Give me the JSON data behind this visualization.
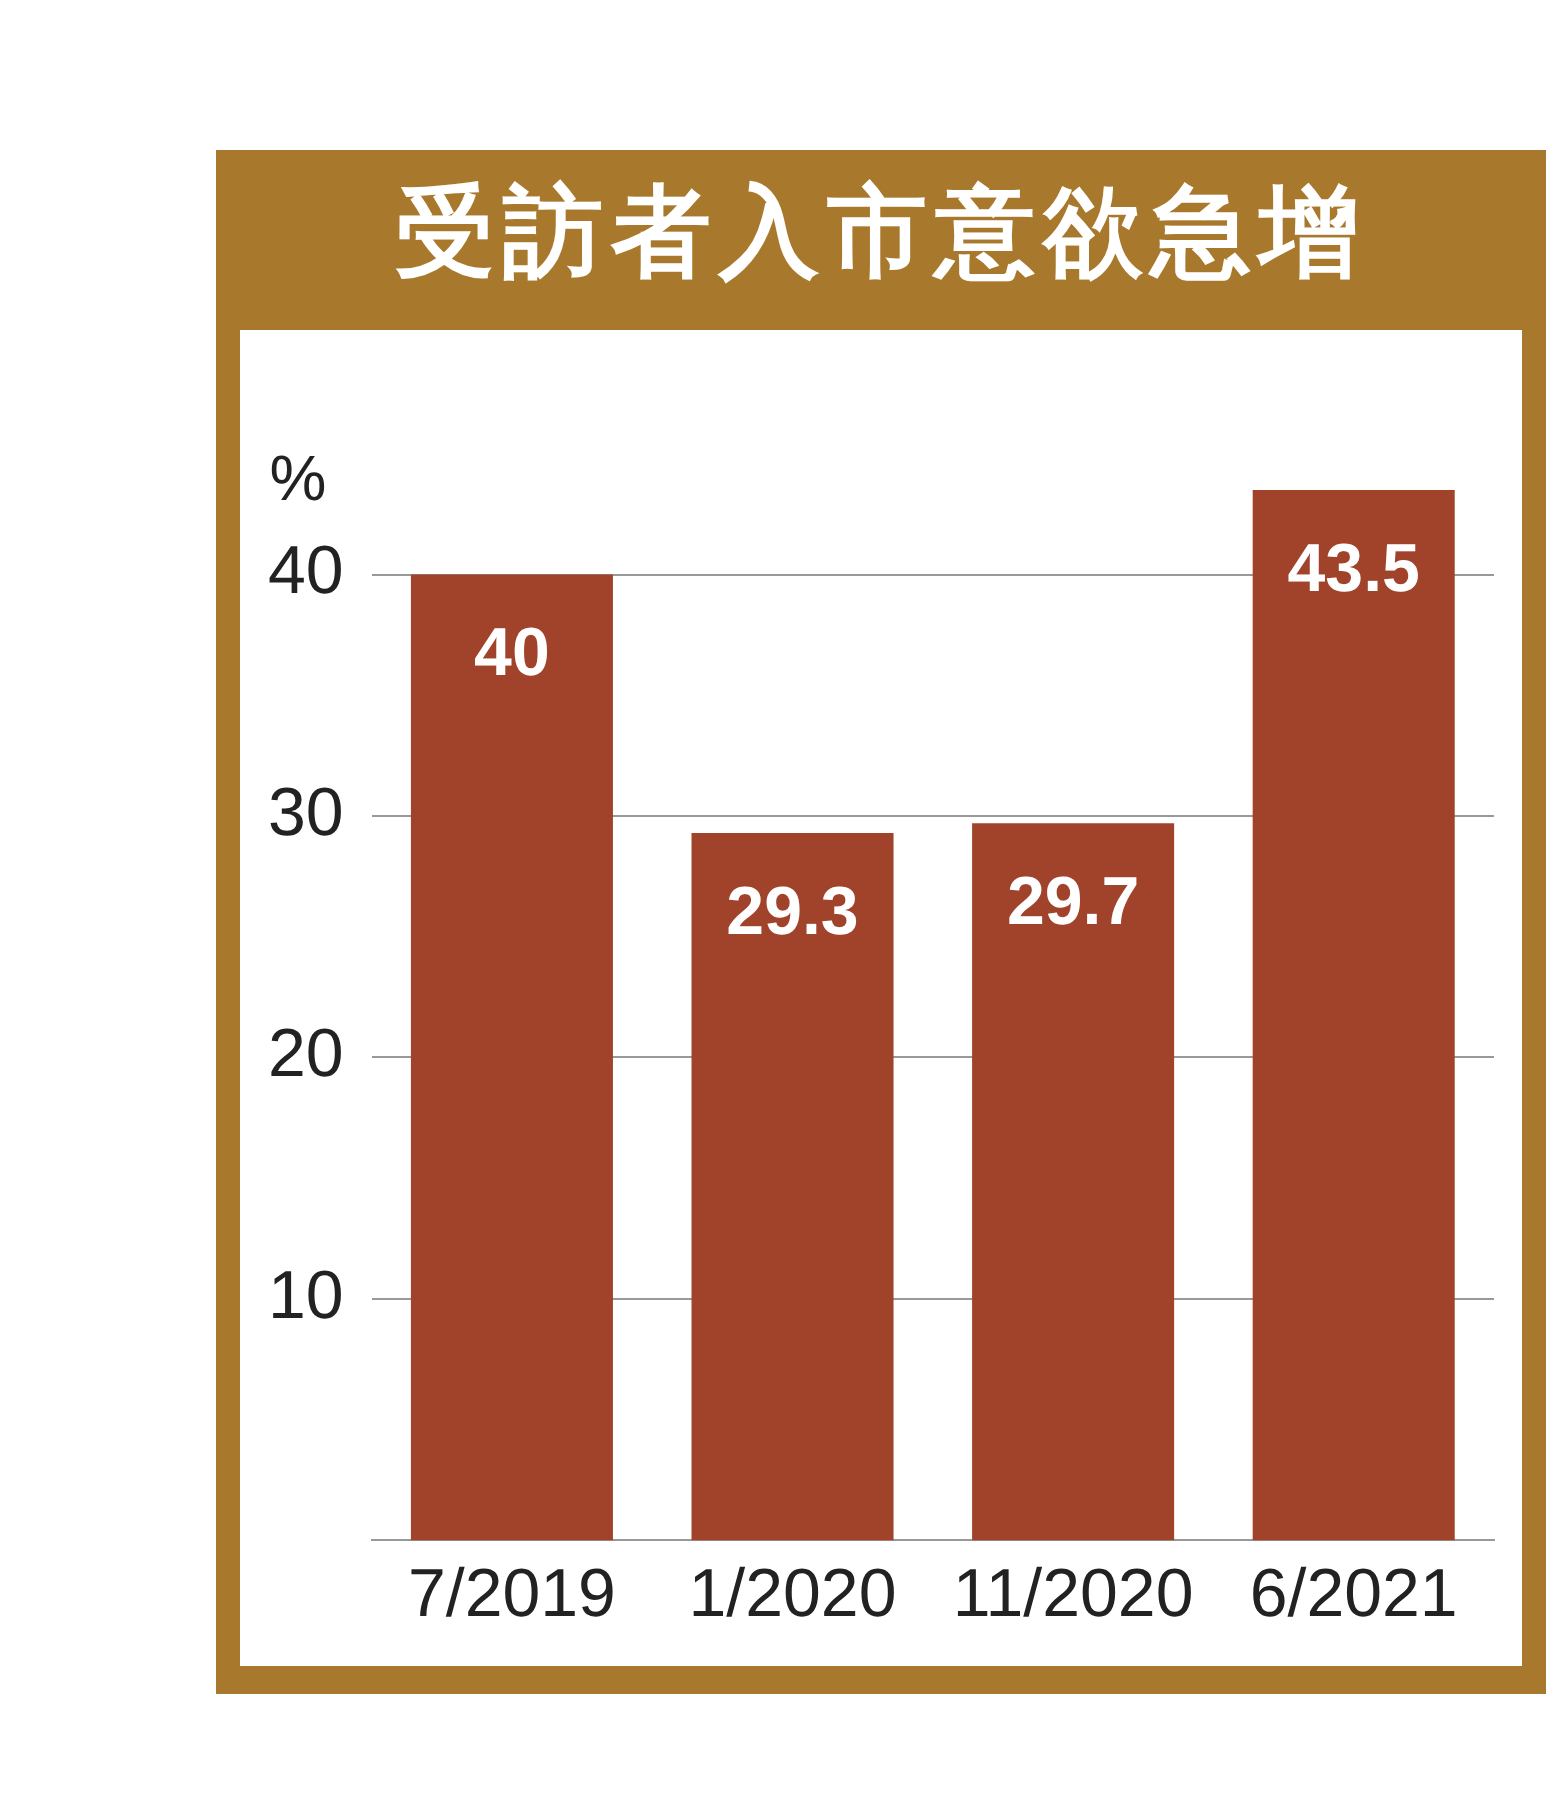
{
  "chart_data": {
    "type": "bar",
    "title": "受訪者入市意欲急增",
    "ylabel": "%",
    "categories": [
      "7/2019",
      "1/2020",
      "11/2020",
      "6/2021"
    ],
    "values": [
      40,
      29.3,
      29.7,
      43.5
    ],
    "color": "#a0432a",
    "ylim": [
      0,
      43.5
    ],
    "yticks": [
      10,
      20,
      30,
      40
    ],
    "grid": "y",
    "legend": false,
    "data_labels": true
  }
}
